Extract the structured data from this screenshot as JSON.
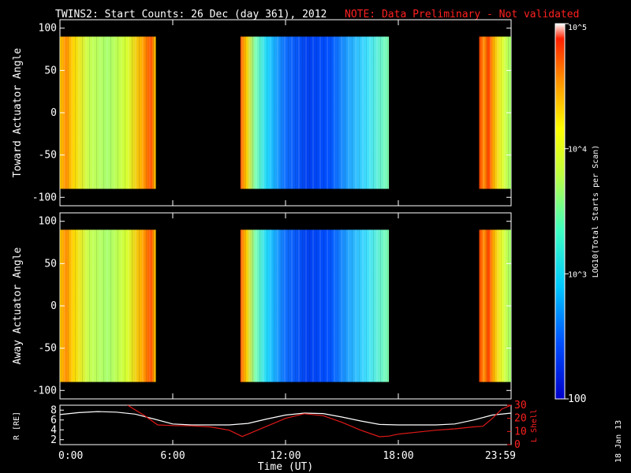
{
  "title": "TWINS2: Start Counts: 26 Dec (day 361), 2012",
  "note": "NOTE: Data Preliminary - Not validated",
  "date_stamp": "18 Jan 13",
  "colors": {
    "note": "#ff2020",
    "r_line": "#ffffff",
    "l_line": "#e01818"
  },
  "colorbar": {
    "label": "LOG10(Total Starts per Scan)",
    "tick_labels": [
      "10^5",
      "10^4",
      "10^3",
      "100"
    ],
    "tick_values": [
      100000,
      10000,
      1000,
      100
    ]
  },
  "chart_data": [
    {
      "type": "heatmap",
      "ylabel": "Toward Actuator Angle",
      "ylim": [
        -110,
        110
      ],
      "yticks": [
        100,
        50,
        0,
        -50,
        -100
      ],
      "xlim": [
        0,
        24
      ],
      "data_intervals_hours": [
        [
          0,
          5.1
        ],
        [
          9.6,
          17.5
        ],
        [
          22.3,
          24
        ]
      ]
    },
    {
      "type": "heatmap",
      "ylabel": "Away Actuator Angle",
      "ylim": [
        -110,
        110
      ],
      "yticks": [
        100,
        50,
        0,
        -50,
        -100
      ],
      "xlim": [
        0,
        24
      ],
      "data_intervals_hours": [
        [
          0,
          5.1
        ],
        [
          9.6,
          17.5
        ],
        [
          22.3,
          24
        ]
      ]
    },
    {
      "type": "line",
      "xlabel": "Time (UT)",
      "x_tick_labels": [
        "0:00",
        "6:00",
        "12:00",
        "18:00",
        "23:59"
      ],
      "x_tick_hours": [
        0,
        6,
        12,
        18,
        24
      ],
      "left_axis": {
        "label": "R [RE]",
        "ticks": [
          2,
          4,
          6,
          8
        ],
        "ylim": [
          1,
          9
        ]
      },
      "right_axis": {
        "label": "L Shell",
        "ticks": [
          0,
          10,
          20,
          30
        ],
        "ylim": [
          0,
          30
        ]
      },
      "series": [
        {
          "axis": "left",
          "x": [
            0,
            1,
            2,
            3,
            4,
            5,
            6,
            7,
            8,
            9,
            10,
            11,
            12,
            13,
            14,
            15,
            16,
            17,
            18,
            19,
            20,
            21,
            22,
            23,
            24
          ],
          "values": [
            7.1,
            7.5,
            7.7,
            7.6,
            7.2,
            6.2,
            5.2,
            5.0,
            5.0,
            5.0,
            5.3,
            6.2,
            7.0,
            7.4,
            7.3,
            6.6,
            5.8,
            5.1,
            5.0,
            5.0,
            5.0,
            5.2,
            6.0,
            7.0,
            7.4
          ]
        },
        {
          "axis": "right",
          "x": [
            3.6,
            4.5,
            5.2,
            6,
            7,
            8,
            9,
            9.7,
            10,
            11,
            12,
            13,
            14,
            15,
            16,
            17,
            17.5,
            18,
            19,
            20,
            21,
            22,
            22.5,
            23,
            23.5,
            24
          ],
          "values": [
            30,
            22,
            15,
            14.5,
            14.3,
            13.5,
            11,
            6.2,
            8,
            14,
            20,
            23.5,
            22,
            17,
            11,
            6,
            6.5,
            8,
            9.5,
            11,
            12,
            13.5,
            14,
            20,
            27,
            30
          ]
        }
      ]
    }
  ]
}
